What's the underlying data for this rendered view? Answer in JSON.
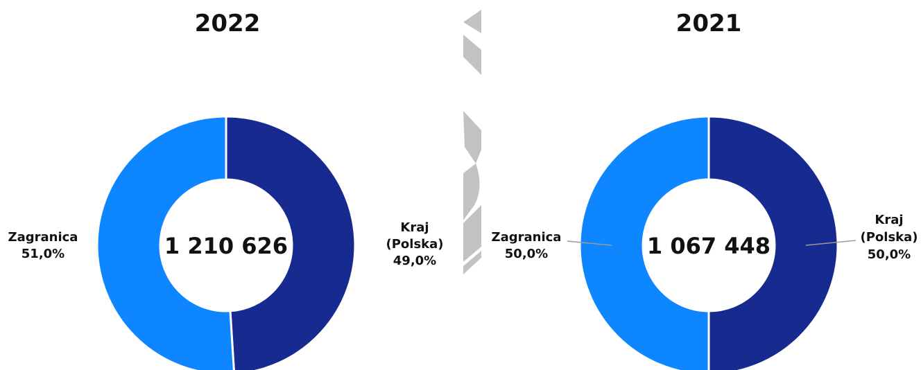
{
  "chart_data": [
    {
      "type": "pie",
      "title": "2022",
      "total": "1 210 626",
      "slices": [
        {
          "label_lines": [
            "Kraj",
            "(Polska)"
          ],
          "value": 49.0,
          "value_label": "49,0%",
          "color": "#172a8f"
        },
        {
          "label_lines": [
            "Zagranica"
          ],
          "value": 51.0,
          "value_label": "51,0%",
          "color": "#0d86ff"
        }
      ]
    },
    {
      "type": "pie",
      "title": "2021",
      "total": "1 067 448",
      "slices": [
        {
          "label_lines": [
            "Kraj",
            "(Polska)"
          ],
          "value": 50.0,
          "value_label": "50,0%",
          "color": "#172a8f"
        },
        {
          "label_lines": [
            "Zagranica"
          ],
          "value": 50.0,
          "value_label": "50,0%",
          "color": "#0d86ff"
        }
      ]
    }
  ],
  "colors": {
    "divider_gray": "#c2c2c2",
    "leader_line": "#9a9a9a"
  }
}
